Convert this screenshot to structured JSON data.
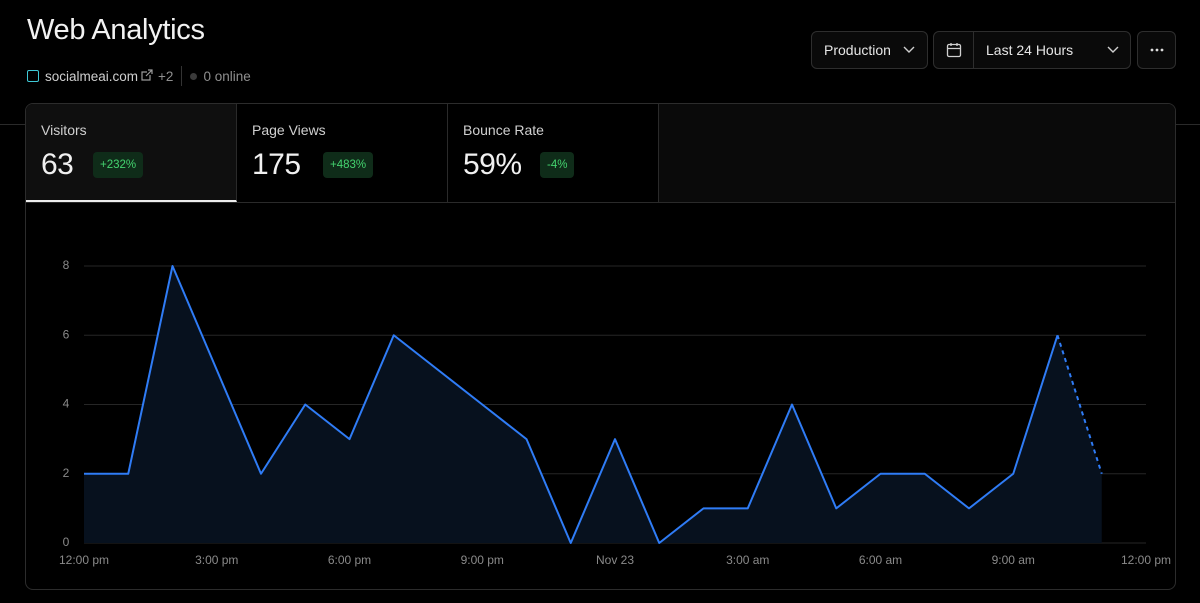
{
  "header": {
    "title": "Web Analytics",
    "site": "socialmeai.com",
    "extra_sites": "+2",
    "online": "0 online"
  },
  "controls": {
    "environment": "Production",
    "range": "Last 24 Hours"
  },
  "metrics": [
    {
      "label": "Visitors",
      "value": "63",
      "change": "+232%"
    },
    {
      "label": "Page Views",
      "value": "175",
      "change": "+483%"
    },
    {
      "label": "Bounce Rate",
      "value": "59%",
      "change": "-4%"
    }
  ],
  "chart_data": {
    "type": "line",
    "color": "#2f7cf6",
    "area_color": "#07111e",
    "grid": true,
    "last_segment_dashed": true,
    "x": [
      0,
      1,
      2,
      3,
      4,
      5,
      6,
      7,
      8,
      9,
      10,
      11,
      12,
      13,
      14,
      15,
      16,
      17,
      18,
      19,
      20,
      21,
      22,
      23
    ],
    "values": [
      2,
      2,
      8,
      5,
      2,
      4,
      3,
      6,
      5,
      4,
      3,
      0,
      3,
      0,
      1,
      1,
      4,
      1,
      2,
      2,
      1,
      2,
      6,
      2
    ],
    "xlim": [
      0,
      24
    ],
    "xticks": [
      {
        "value": 0,
        "label": "12:00 pm"
      },
      {
        "value": 3,
        "label": "3:00 pm"
      },
      {
        "value": 6,
        "label": "6:00 pm"
      },
      {
        "value": 9,
        "label": "9:00 pm"
      },
      {
        "value": 12,
        "label": "Nov 23"
      },
      {
        "value": 15,
        "label": "3:00 am"
      },
      {
        "value": 18,
        "label": "6:00 am"
      },
      {
        "value": 21,
        "label": "9:00 am"
      },
      {
        "value": 24,
        "label": "12:00 pm"
      }
    ],
    "ylim": [
      0,
      8
    ],
    "yticks": [
      0,
      2,
      4,
      6,
      8
    ]
  }
}
